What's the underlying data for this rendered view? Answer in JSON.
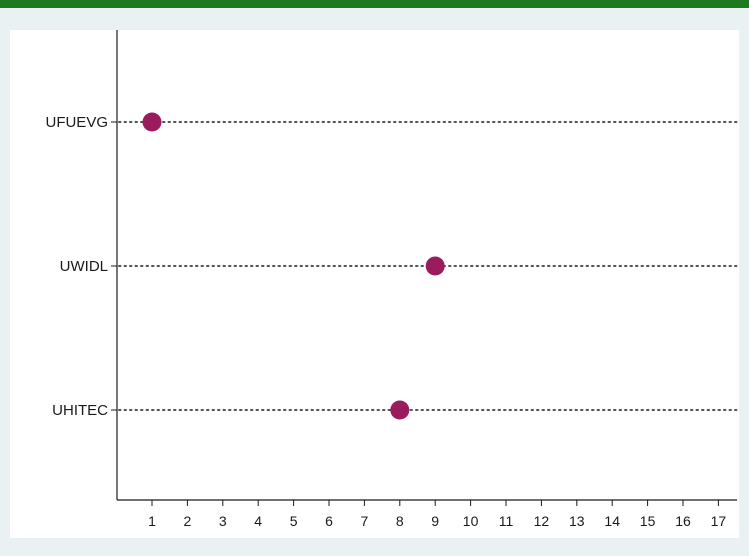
{
  "colors": {
    "outer_background": "#eaf1f3",
    "plot_background": "#ffffff",
    "top_border": "#1f7a1f",
    "marker": "#9b1c5e",
    "axis": "#1a1a1a",
    "dotted_line": "#555555"
  },
  "chart_data": {
    "type": "scatter",
    "subtype": "dot-plot",
    "categories": [
      "UFUEVG",
      "UWIDL",
      "UHITEC"
    ],
    "values": [
      1,
      9,
      8
    ],
    "x_ticks": [
      1,
      2,
      3,
      4,
      5,
      6,
      7,
      8,
      9,
      10,
      11,
      12,
      13,
      14,
      15,
      16,
      17
    ],
    "xlim": [
      0,
      17.2
    ],
    "title": "",
    "xlabel": "",
    "ylabel": "",
    "grid": false,
    "legend": "none",
    "category_guides": "dotted"
  }
}
